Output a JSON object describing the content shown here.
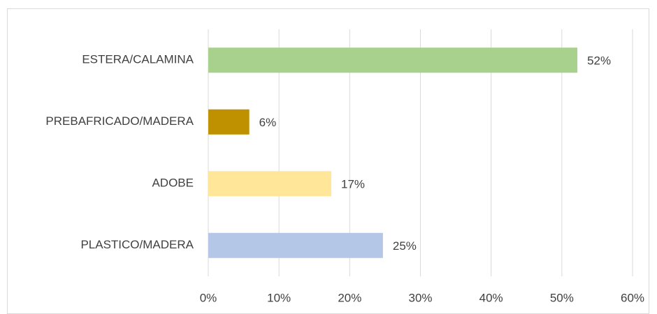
{
  "chart_data": {
    "type": "hbar",
    "categories": [
      "ESTERA/CALAMINA",
      "PREBAFRICADO/MADERA",
      "ADOBE",
      "PLASTICO/MADERA"
    ],
    "values": [
      52.2,
      5.8,
      17.4,
      24.7
    ],
    "value_labels": [
      "52%",
      "6%",
      "17%",
      "25%"
    ],
    "colors": [
      "#a9d18e",
      "#bf9000",
      "#ffe699",
      "#b4c7e7"
    ],
    "xlim": [
      0,
      60
    ],
    "xticks": [
      {
        "value": 0,
        "label": "0%"
      },
      {
        "value": 10,
        "label": "10%"
      },
      {
        "value": 20,
        "label": "20%"
      },
      {
        "value": 30,
        "label": "30%"
      },
      {
        "value": 40,
        "label": "40%"
      },
      {
        "value": 50,
        "label": "50%"
      },
      {
        "value": 60,
        "label": "60%"
      }
    ],
    "grid": true
  }
}
